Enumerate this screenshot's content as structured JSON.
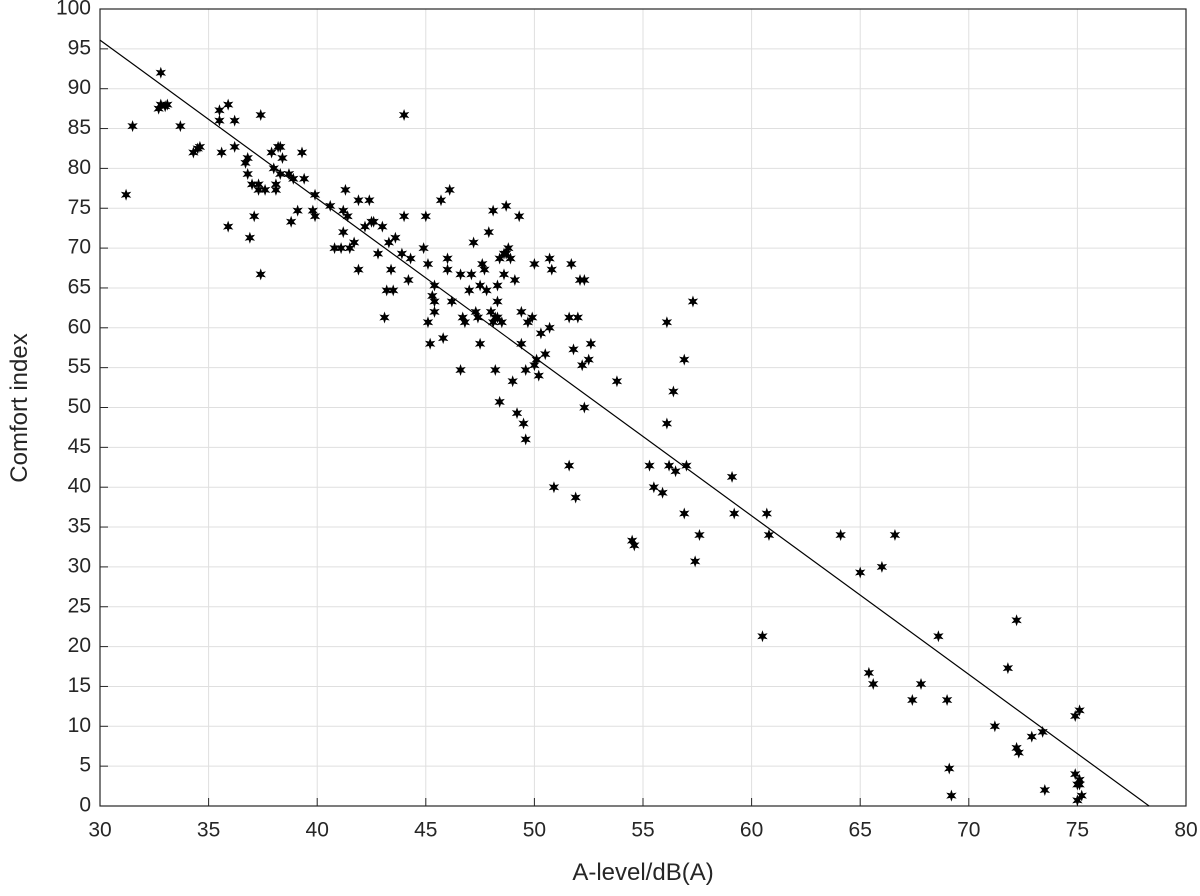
{
  "chart_data": {
    "type": "scatter",
    "x_label": "A-level/dB(A)",
    "y_label": "Comfort index",
    "x": [
      31.2,
      31.5,
      32.7,
      32.8,
      32.8,
      33,
      33.1,
      33.7,
      34.3,
      34.5,
      34.6,
      35.5,
      35.5,
      35.6,
      35.9,
      35.9,
      36.2,
      36.2,
      36.7,
      36.8,
      36.8,
      36.9,
      37,
      37.1,
      37.3,
      37.3,
      37.4,
      37.4,
      37.6,
      37.9,
      38,
      38.1,
      38.1,
      38.2,
      38.3,
      38.3,
      38.4,
      38.7,
      38.8,
      38.9,
      39.1,
      39.3,
      39.4,
      39.8,
      39.9,
      39.9,
      40.6,
      40.8,
      41.1,
      41.2,
      41.2,
      41.3,
      41.4,
      41.5,
      41.7,
      41.9,
      41.9,
      42.2,
      42.4,
      42.5,
      42.6,
      42.8,
      43,
      43.1,
      43.2,
      43.3,
      43.4,
      43.5,
      43.6,
      43.9,
      44,
      44,
      44.2,
      44.3,
      44.9,
      45,
      45.1,
      45.1,
      45.2,
      45.3,
      45.4,
      45.4,
      45.4,
      45.7,
      45.8,
      46,
      46,
      46.1,
      46.2,
      46.6,
      46.6,
      46.7,
      46.8,
      47,
      47.1,
      47.2,
      47.3,
      47.4,
      47.5,
      47.5,
      47.6,
      47.7,
      47.8,
      47.9,
      48,
      48.1,
      48.1,
      48.2,
      48.2,
      48.3,
      48.3,
      48.3,
      48.4,
      48.4,
      48.5,
      48.6,
      48.6,
      48.7,
      48.7,
      48.8,
      48.9,
      49,
      49.1,
      49.2,
      49.3,
      49.4,
      49.4,
      49.5,
      49.6,
      49.6,
      49.7,
      49.9,
      50,
      50,
      50.1,
      50.2,
      50.3,
      50.5,
      50.7,
      50.7,
      50.8,
      50.9,
      51.6,
      51.6,
      51.7,
      51.8,
      51.9,
      52,
      52.1,
      52.2,
      52.3,
      52.3,
      52.5,
      52.6,
      53.8,
      54.5,
      54.6,
      55.3,
      55.5,
      55.9,
      56.1,
      56.1,
      56.2,
      56.4,
      56.5,
      56.9,
      56.9,
      57,
      57.3,
      57.4,
      57.6,
      59.1,
      59.2,
      60.5,
      60.7,
      60.8,
      64.1,
      65,
      65.4,
      65.6,
      66,
      66.6,
      67.4,
      67.8,
      68.6,
      69,
      69.1,
      69.2,
      71.2,
      71.8,
      72.2,
      72.2,
      72.3,
      72.9,
      73.4,
      73.5,
      74.9,
      74.9,
      75,
      75,
      75.1,
      75.1,
      75.1,
      75.2
    ],
    "values": [
      76.7,
      85.3,
      87.5,
      92,
      88,
      87.8,
      88,
      85.3,
      82,
      82.5,
      82.7,
      87.3,
      86,
      82,
      72.7,
      88,
      86,
      82.7,
      80.7,
      81.3,
      79.3,
      71.3,
      78,
      74,
      77.3,
      78,
      86.7,
      66.7,
      77.3,
      82,
      80,
      78,
      77.3,
      82.7,
      82.7,
      79.3,
      81.3,
      79.3,
      73.3,
      78.7,
      74.7,
      82,
      78.7,
      74.7,
      76.7,
      74,
      75.3,
      70,
      70,
      74.7,
      72,
      77.3,
      74,
      70,
      70.7,
      76,
      67.3,
      72.7,
      76,
      73.3,
      73.3,
      69.3,
      72.7,
      61.3,
      64.7,
      70.7,
      67.3,
      64.7,
      71.3,
      69.3,
      74,
      86.7,
      66,
      68.7,
      70,
      74,
      68,
      60.7,
      58,
      64,
      65.3,
      62,
      63.3,
      76,
      58.7,
      68.7,
      67.3,
      77.3,
      63.3,
      54.7,
      66.7,
      61.3,
      60.7,
      64.7,
      66.7,
      70.7,
      62,
      61.3,
      58,
      65.3,
      68,
      67.3,
      64.7,
      72,
      62,
      60.7,
      74.7,
      61.3,
      54.7,
      61.3,
      65.3,
      63.3,
      50.7,
      68.7,
      60.7,
      69.3,
      66.7,
      69.3,
      75.3,
      70,
      68.7,
      53.3,
      66,
      49.3,
      74,
      62,
      58,
      48,
      46,
      54.7,
      60.7,
      61.3,
      55.3,
      68,
      56,
      54,
      59.3,
      56.7,
      68.7,
      60,
      67.3,
      40,
      61.3,
      42.7,
      68,
      57.3,
      38.7,
      61.3,
      66,
      55.3,
      50,
      66,
      56,
      58,
      53.3,
      33.3,
      32.7,
      42.7,
      40,
      39.3,
      48,
      60.7,
      42.7,
      52,
      42,
      36.7,
      56,
      42.7,
      63.3,
      30.7,
      34,
      41.3,
      36.7,
      21.3,
      36.7,
      34,
      34,
      29.3,
      16.7,
      15.3,
      30,
      34,
      13.3,
      15.3,
      21.3,
      13.3,
      4.7,
      1.3,
      10,
      17.3,
      23.3,
      7.3,
      6.7,
      8.7,
      9.3,
      2,
      11.3,
      4,
      2.7,
      0.7,
      3.3,
      12,
      2.7,
      1.3
    ],
    "color": "#000000",
    "fit_line": {
      "x": [
        30,
        78.3
      ],
      "values": [
        96.1,
        0
      ],
      "color": "#000000"
    },
    "xlim": [
      30,
      80
    ],
    "xticks": [
      30,
      35,
      40,
      45,
      50,
      55,
      60,
      65,
      70,
      75,
      80
    ],
    "ylim": [
      0,
      100
    ],
    "yticks": [
      0,
      5,
      10,
      15,
      20,
      25,
      30,
      35,
      40,
      45,
      50,
      55,
      60,
      65,
      70,
      75,
      80,
      85,
      90,
      95,
      100
    ],
    "grid": true
  }
}
